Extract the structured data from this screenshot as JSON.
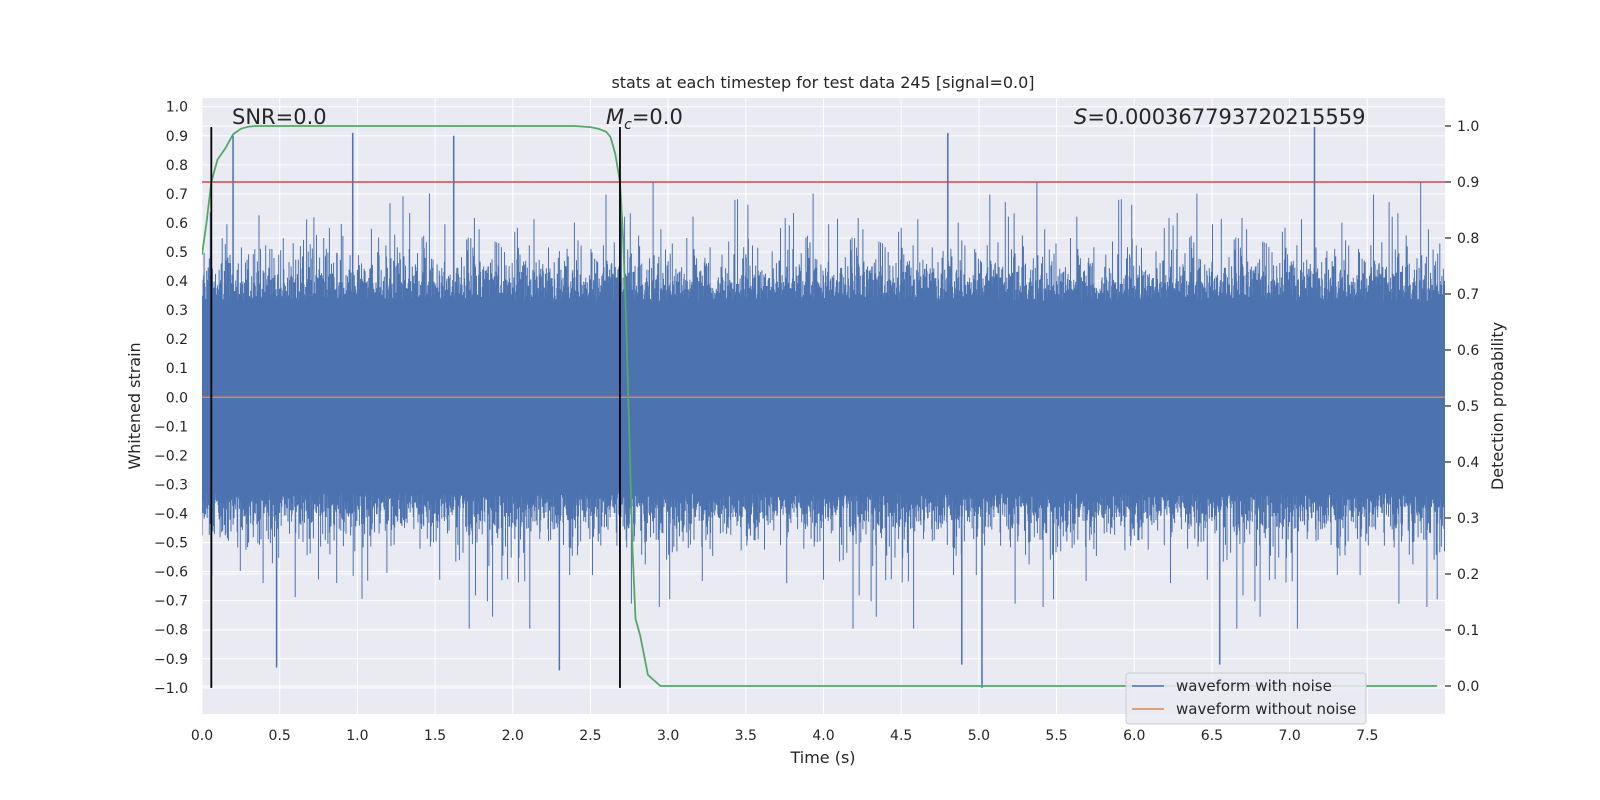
{
  "chart_data": {
    "type": "line",
    "title": "stats at each timestep for test data 245 [signal=0.0]",
    "xlabel": "Time (s)",
    "ylabel": "Whitened strain",
    "y2label": "Detection probability",
    "xlim": [
      0.0,
      8.0
    ],
    "ylim": [
      -1.09,
      1.03
    ],
    "y2lim": [
      -0.05,
      1.05
    ],
    "x_ticks": [
      0.0,
      0.5,
      1.0,
      1.5,
      2.0,
      2.5,
      3.0,
      3.5,
      4.0,
      4.5,
      5.0,
      5.5,
      6.0,
      6.5,
      7.0,
      7.5
    ],
    "x_tick_labels": [
      "0.0",
      "0.5",
      "1.0",
      "1.5",
      "2.0",
      "2.5",
      "3.0",
      "3.5",
      "4.0",
      "4.5",
      "5.0",
      "5.5",
      "6.0",
      "6.5",
      "7.0",
      "7.5"
    ],
    "y_ticks": [
      1.0,
      0.9,
      0.8,
      0.7,
      0.6,
      0.5,
      0.4,
      0.3,
      0.2,
      0.1,
      0.0,
      -0.1,
      -0.2,
      -0.3,
      -0.4,
      -0.5,
      -0.6,
      -0.7,
      -0.8,
      -0.9,
      -1.0
    ],
    "y_tick_labels": [
      "1.0",
      "0.9",
      "0.8",
      "0.7",
      "0.6",
      "0.5",
      "0.4",
      "0.3",
      "0.2",
      "0.1",
      "0.0",
      "−0.1",
      "−0.2",
      "−0.3",
      "−0.4",
      "−0.5",
      "−0.6",
      "−0.7",
      "−0.8",
      "−0.9",
      "−1.0"
    ],
    "y2_ticks": [
      1.0,
      0.9,
      0.8,
      0.7,
      0.6,
      0.5,
      0.4,
      0.3,
      0.2,
      0.1,
      0.0
    ],
    "y2_tick_labels": [
      "1.0",
      "0.9",
      "0.8",
      "0.7",
      "0.6",
      "0.5",
      "0.4",
      "0.3",
      "0.2",
      "0.1",
      "0.0"
    ],
    "grid": true,
    "annotations": {
      "snr": "SNR=0.0",
      "mc_symbol": "M",
      "mc_subscript": "c",
      "mc_value": "=0.0",
      "s_symbol": "S",
      "s_value": "=0.000367793720215559"
    },
    "vertical_lines_x": [
      0.06,
      2.69
    ],
    "vertical_lines_yrange": [
      -1.0,
      0.93
    ],
    "threshold_prob": 0.9,
    "series": [
      {
        "name": "waveform with noise",
        "color": "#4c72b0",
        "description": "noise-only whitened strain, amplitude mostly within ±0.5 with spikes up to ±1.0",
        "peaks": [
          {
            "x": 0.2,
            "y": 0.9
          },
          {
            "x": 0.97,
            "y": 0.91
          },
          {
            "x": 1.62,
            "y": 0.9
          },
          {
            "x": 4.8,
            "y": 0.91
          },
          {
            "x": 7.16,
            "y": 0.93
          },
          {
            "x": 0.48,
            "y": -0.93
          },
          {
            "x": 2.3,
            "y": -0.94
          },
          {
            "x": 4.89,
            "y": -0.92
          },
          {
            "x": 5.02,
            "y": -1.0
          },
          {
            "x": 6.55,
            "y": -0.92
          }
        ]
      },
      {
        "name": "waveform without noise",
        "color": "#dd8452",
        "values": [
          {
            "x": 0.0,
            "y": 0.0
          },
          {
            "x": 8.0,
            "y": 0.0
          }
        ]
      },
      {
        "name": "detection probability",
        "color": "#55a868",
        "axis": "right",
        "x": [
          0.0,
          0.03,
          0.06,
          0.1,
          0.15,
          0.2,
          0.25,
          0.3,
          0.35,
          0.4,
          0.5,
          0.6,
          0.8,
          1.0,
          1.5,
          2.0,
          2.3,
          2.4,
          2.5,
          2.55,
          2.6,
          2.63,
          2.66,
          2.69,
          2.71,
          2.73,
          2.75,
          2.77,
          2.79,
          2.82,
          2.87,
          2.95,
          3.0,
          3.5,
          4.0,
          5.0,
          6.0,
          7.0,
          7.95
        ],
        "y": [
          0.77,
          0.83,
          0.9,
          0.94,
          0.96,
          0.985,
          0.995,
          0.999,
          1.0,
          1.0,
          1.0,
          1.0,
          1.0,
          1.0,
          1.0,
          1.0,
          1.0,
          1.0,
          0.998,
          0.995,
          0.99,
          0.98,
          0.95,
          0.9,
          0.8,
          0.65,
          0.45,
          0.25,
          0.12,
          0.09,
          0.02,
          0.0,
          0.0,
          0.0,
          0.0,
          0.0,
          0.0,
          0.0,
          0.0
        ]
      },
      {
        "name": "threshold",
        "color": "#c44e52",
        "axis": "right",
        "values": [
          {
            "x": 0.0,
            "y": 0.9
          },
          {
            "x": 8.0,
            "y": 0.9
          }
        ]
      }
    ],
    "legend": {
      "position": "lower-right",
      "entries": [
        {
          "label": "waveform with noise",
          "color": "#4c72b0"
        },
        {
          "label": "waveform without noise",
          "color": "#dd8452"
        }
      ]
    }
  }
}
